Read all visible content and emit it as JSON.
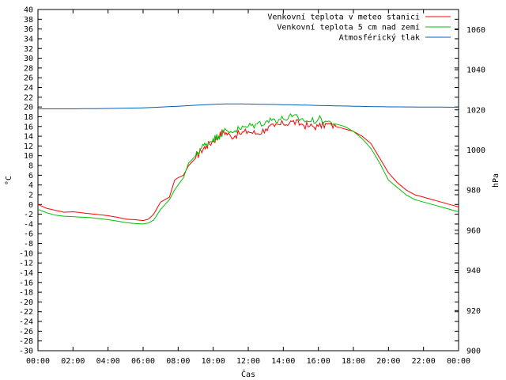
{
  "chart_data": {
    "type": "line",
    "title": "",
    "xlabel": "Čas",
    "ylabel": "°C",
    "y2label": "hPa",
    "xlim": [
      0,
      24
    ],
    "ylim": [
      -30,
      40
    ],
    "y2lim": [
      900,
      1070
    ],
    "x_ticks": [
      "00:00",
      "02:00",
      "04:00",
      "06:00",
      "08:00",
      "10:00",
      "12:00",
      "14:00",
      "16:00",
      "18:00",
      "20:00",
      "22:00",
      "00:00"
    ],
    "y_ticks": [
      -30,
      -28,
      -26,
      -24,
      -22,
      -20,
      -18,
      -16,
      -14,
      -12,
      -10,
      -8,
      -6,
      -4,
      -2,
      0,
      2,
      4,
      6,
      8,
      10,
      12,
      14,
      16,
      18,
      20,
      22,
      24,
      26,
      28,
      30,
      32,
      34,
      36,
      38,
      40
    ],
    "y2_ticks": [
      900,
      920,
      940,
      960,
      980,
      1000,
      1020,
      1040,
      1060
    ],
    "legend_position": "top-right",
    "grid": false,
    "series": [
      {
        "name": "Venkovní teplota v meteo stanici",
        "color": "#ff0000",
        "axis": "left",
        "x": [
          0,
          0.5,
          1,
          1.5,
          2,
          2.5,
          3,
          3.5,
          4,
          4.5,
          5,
          5.5,
          6,
          6.3,
          6.6,
          7,
          7.5,
          7.8,
          8,
          8.3,
          8.6,
          9,
          9.3,
          9.6,
          10,
          10.3,
          10.6,
          11,
          11.5,
          12,
          12.5,
          13,
          13.5,
          14,
          14.5,
          15,
          15.5,
          16,
          16.5,
          17,
          17.5,
          18,
          18.5,
          19,
          19.5,
          20,
          20.5,
          21,
          21.5,
          22,
          22.5,
          23,
          23.5,
          24
        ],
        "y": [
          0,
          -0.8,
          -1.2,
          -1.6,
          -1.5,
          -1.7,
          -1.9,
          -2.1,
          -2.3,
          -2.6,
          -3,
          -3.1,
          -3.3,
          -3,
          -2,
          0.5,
          1.5,
          5,
          5.5,
          6,
          8,
          9.5,
          11,
          12,
          13,
          14,
          15,
          14,
          14.5,
          15,
          14.5,
          15.5,
          16,
          16.5,
          17,
          16.5,
          16,
          16,
          16.5,
          16,
          15.5,
          15,
          14,
          12.5,
          9.5,
          6.5,
          4.5,
          3,
          2,
          1.5,
          1,
          0.5,
          0,
          -0.5
        ]
      },
      {
        "name": "Venkovní teplota 5 cm nad zemí",
        "color": "#00c000",
        "axis": "left",
        "x": [
          0,
          0.5,
          1,
          1.5,
          2,
          2.5,
          3,
          3.5,
          4,
          4.5,
          5,
          5.5,
          6,
          6.3,
          6.6,
          7,
          7.5,
          7.8,
          8,
          8.3,
          8.6,
          9,
          9.3,
          9.6,
          10,
          10.3,
          10.6,
          11,
          11.5,
          12,
          12.5,
          13,
          13.5,
          14,
          14.5,
          15,
          15.5,
          16,
          16.5,
          17,
          17.5,
          18,
          18.5,
          19,
          19.5,
          20,
          20.5,
          21,
          21.5,
          22,
          22.5,
          23,
          23.5,
          24
        ],
        "y": [
          -1,
          -1.7,
          -2.2,
          -2.4,
          -2.5,
          -2.6,
          -2.7,
          -2.9,
          -3.1,
          -3.4,
          -3.7,
          -3.9,
          -4,
          -3.8,
          -3.2,
          -1,
          1,
          3,
          4,
          5.5,
          8.5,
          10,
          11.5,
          12.5,
          13.5,
          14,
          15,
          15,
          15.5,
          16,
          16.5,
          17,
          17.5,
          17.5,
          18,
          17.5,
          17,
          17.5,
          17,
          16.5,
          16,
          15,
          13.5,
          11.5,
          8.5,
          5,
          3.5,
          2,
          1,
          0.5,
          0,
          -0.5,
          -1,
          -1.5
        ]
      },
      {
        "name": "Atmosférický tlak",
        "color": "#0060c0",
        "axis": "right",
        "x": [
          0,
          2,
          4,
          6,
          8,
          10,
          11,
          12,
          14,
          16,
          18,
          20,
          22,
          24
        ],
        "y": [
          1020.5,
          1020.5,
          1020.7,
          1021,
          1021.8,
          1022.8,
          1023,
          1022.9,
          1022.6,
          1022.2,
          1021.8,
          1021.5,
          1021.4,
          1021.3
        ]
      }
    ]
  }
}
